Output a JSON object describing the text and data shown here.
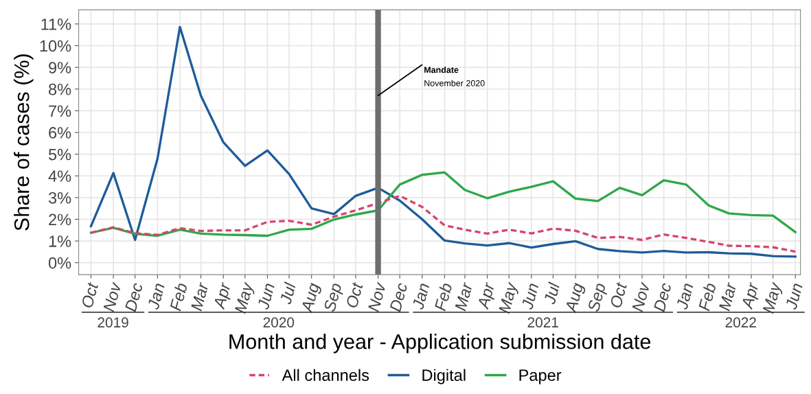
{
  "chart_data": {
    "type": "line",
    "xlabel": "Month and year - Application submission date",
    "ylabel": "Share of cases (%)",
    "x": [
      "2019-10",
      "2019-11",
      "2019-12",
      "2020-01",
      "2020-02",
      "2020-03",
      "2020-04",
      "2020-05",
      "2020-06",
      "2020-07",
      "2020-08",
      "2020-09",
      "2020-10",
      "2020-11",
      "2020-12",
      "2021-01",
      "2021-02",
      "2021-03",
      "2021-04",
      "2021-05",
      "2021-06",
      "2021-07",
      "2021-08",
      "2021-09",
      "2021-10",
      "2021-11",
      "2021-12",
      "2022-01",
      "2022-02",
      "2022-03",
      "2022-04",
      "2022-05",
      "2022-06"
    ],
    "series": [
      {
        "name": "All channels",
        "color": "#d6456c",
        "line_style": "dashed",
        "values": [
          1.38,
          1.63,
          1.36,
          1.28,
          1.59,
          1.46,
          1.49,
          1.49,
          1.88,
          1.93,
          1.75,
          2.12,
          2.41,
          2.75,
          3.08,
          2.57,
          1.72,
          1.52,
          1.34,
          1.52,
          1.35,
          1.57,
          1.47,
          1.14,
          1.19,
          1.05,
          1.3,
          1.14,
          0.96,
          0.78,
          0.76,
          0.71,
          0.51
        ]
      },
      {
        "name": "Digital",
        "color": "#1f5c99",
        "values": [
          1.68,
          4.13,
          1.05,
          4.79,
          10.86,
          7.69,
          5.55,
          4.46,
          5.17,
          4.08,
          2.5,
          2.24,
          3.08,
          3.45,
          2.86,
          2.0,
          1.02,
          0.89,
          0.79,
          0.9,
          0.7,
          0.86,
          0.99,
          0.63,
          0.53,
          0.47,
          0.54,
          0.47,
          0.48,
          0.43,
          0.41,
          0.3,
          0.28
        ]
      },
      {
        "name": "Paper",
        "color": "#2ea84a",
        "values": [
          1.38,
          1.61,
          1.33,
          1.24,
          1.52,
          1.34,
          1.29,
          1.27,
          1.24,
          1.52,
          1.56,
          1.99,
          2.22,
          2.41,
          3.6,
          4.05,
          4.16,
          3.35,
          2.97,
          3.27,
          3.5,
          3.75,
          2.95,
          2.84,
          3.45,
          3.11,
          3.8,
          3.6,
          2.64,
          2.27,
          2.19,
          2.17,
          1.41
        ]
      }
    ],
    "xlim": [
      "2019-09-14",
      "2022-06-08"
    ],
    "xticks": [
      {
        "value": "2019-10",
        "label": "Oct"
      },
      {
        "value": "2019-11",
        "label": "Nov"
      },
      {
        "value": "2019-12",
        "label": "Dec"
      },
      {
        "value": "2020-01",
        "label": "Jan"
      },
      {
        "value": "2020-02",
        "label": "Feb"
      },
      {
        "value": "2020-03",
        "label": "Mar"
      },
      {
        "value": "2020-04",
        "label": "Apr"
      },
      {
        "value": "2020-05",
        "label": "May"
      },
      {
        "value": "2020-06",
        "label": "Jun"
      },
      {
        "value": "2020-07",
        "label": "Jul"
      },
      {
        "value": "2020-08",
        "label": "Aug"
      },
      {
        "value": "2020-09",
        "label": "Sep"
      },
      {
        "value": "2020-10",
        "label": "Oct"
      },
      {
        "value": "2020-11",
        "label": "Nov"
      },
      {
        "value": "2020-12",
        "label": "Dec"
      },
      {
        "value": "2021-01",
        "label": "Jan"
      },
      {
        "value": "2021-02",
        "label": "Feb"
      },
      {
        "value": "2021-03",
        "label": "Mar"
      },
      {
        "value": "2021-04",
        "label": "Apr"
      },
      {
        "value": "2021-05",
        "label": "May"
      },
      {
        "value": "2021-06",
        "label": "Jun"
      },
      {
        "value": "2021-07",
        "label": "Jul"
      },
      {
        "value": "2021-08",
        "label": "Aug"
      },
      {
        "value": "2021-09",
        "label": "Sep"
      },
      {
        "value": "2021-10",
        "label": "Oct"
      },
      {
        "value": "2021-11",
        "label": "Nov"
      },
      {
        "value": "2021-12",
        "label": "Dec"
      },
      {
        "value": "2022-01",
        "label": "Jan"
      },
      {
        "value": "2022-02",
        "label": "Feb"
      },
      {
        "value": "2022-03",
        "label": "Mar"
      },
      {
        "value": "2022-04",
        "label": "Apr"
      },
      {
        "value": "2022-05",
        "label": "May"
      },
      {
        "value": "2022-06",
        "label": "Jun"
      }
    ],
    "ylim": [
      -0.55,
      11.65
    ],
    "yticks": [
      {
        "value": 0,
        "label": "0%"
      },
      {
        "value": 1,
        "label": "1%"
      },
      {
        "value": 2,
        "label": "2%"
      },
      {
        "value": 3,
        "label": "3%"
      },
      {
        "value": 4,
        "label": "4%"
      },
      {
        "value": 5,
        "label": "5%"
      },
      {
        "value": 6,
        "label": "6%"
      },
      {
        "value": 7,
        "label": "7%"
      },
      {
        "value": 8,
        "label": "8%"
      },
      {
        "value": 9,
        "label": "9%"
      },
      {
        "value": 10,
        "label": "10%"
      },
      {
        "value": 11,
        "label": "11%"
      }
    ],
    "ref_lines": [
      {
        "axis": "x",
        "value": "2020-11",
        "label": "Mandate\nNovember 2020",
        "color": "#6e6e6e"
      }
    ],
    "annotations": [
      "2019",
      "2020",
      "2021",
      "2022"
    ],
    "grid": true,
    "legend": "bottom"
  }
}
